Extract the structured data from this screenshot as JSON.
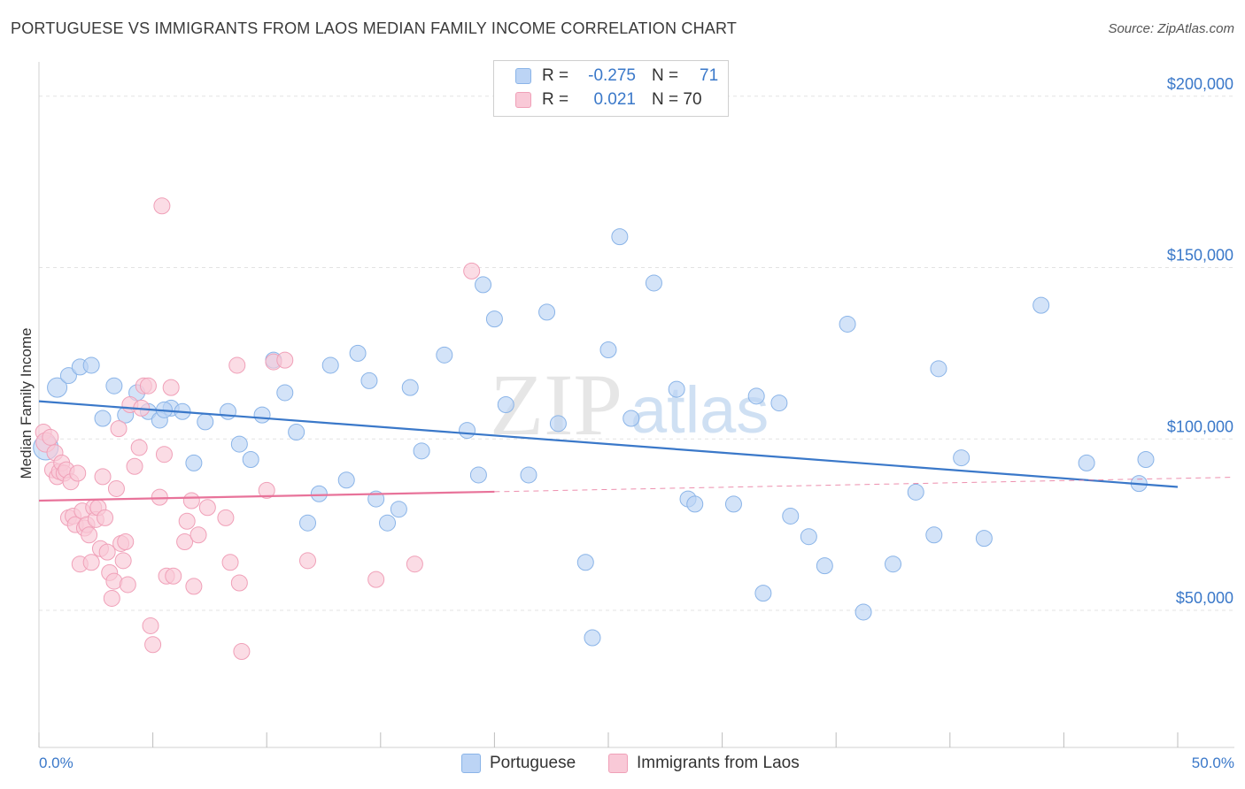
{
  "title": "PORTUGUESE VS IMMIGRANTS FROM LAOS MEDIAN FAMILY INCOME CORRELATION CHART",
  "source": "Source: ZipAtlas.com",
  "watermark": {
    "zip": "ZIP",
    "atlas": "atlas"
  },
  "legend": {
    "rows": [
      {
        "r_label": "R =",
        "r_value": "-0.275",
        "n_label": "N =",
        "n_value": "71",
        "color": "#8ab4e8",
        "fill": "#bcd4f5"
      },
      {
        "r_label": "R =",
        "r_value": "0.021",
        "n_label": "N = 70",
        "n_value": "",
        "color": "#f0a0b8",
        "fill": "#f9c9d7"
      }
    ]
  },
  "bottom_legend": [
    {
      "label": "Portuguese",
      "color": "#8ab4e8",
      "fill": "#bcd4f5"
    },
    {
      "label": "Immigrants from Laos",
      "color": "#f0a0b8",
      "fill": "#f9c9d7"
    }
  ],
  "chart_data": {
    "type": "scatter",
    "ylabel": "Median Family Income",
    "xlabel": "",
    "xlim": [
      0,
      50
    ],
    "ylim": [
      10000,
      210000
    ],
    "x_tick_labels": {
      "min": "0.0%",
      "max": "50.0%"
    },
    "y_ticks": [
      {
        "value": 50000,
        "label": "$50,000"
      },
      {
        "value": 100000,
        "label": "$100,000"
      },
      {
        "value": 150000,
        "label": "$150,000"
      },
      {
        "value": 200000,
        "label": "$200,000"
      }
    ],
    "grid": true,
    "legend_position": "top-center",
    "series": [
      {
        "name": "Portuguese",
        "color": "#3a78c9",
        "point_fill": "#bcd4f5",
        "point_stroke": "#8ab4e8",
        "trend": {
          "x0": 0,
          "y0": 111000,
          "x1": 50,
          "y1": 86000,
          "solid_to": 50
        },
        "points": [
          [
            0.3,
            97500,
            14
          ],
          [
            0.8,
            115000,
            11
          ],
          [
            1.3,
            118500,
            9
          ],
          [
            1.8,
            121000,
            9
          ],
          [
            2.3,
            121500,
            9
          ],
          [
            2.8,
            106000,
            9
          ],
          [
            3.3,
            115500,
            9
          ],
          [
            3.8,
            107000,
            9
          ],
          [
            4.3,
            113500,
            9
          ],
          [
            4.8,
            108000,
            9
          ],
          [
            5.3,
            105500,
            9
          ],
          [
            5.8,
            109000,
            9
          ],
          [
            6.3,
            108000,
            9
          ],
          [
            6.8,
            93000,
            9
          ],
          [
            7.3,
            105000,
            9
          ],
          [
            8.3,
            108000,
            9
          ],
          [
            8.8,
            98500,
            9
          ],
          [
            9.3,
            94000,
            9
          ],
          [
            9.8,
            107000,
            9
          ],
          [
            10.3,
            123000,
            9
          ],
          [
            10.8,
            113500,
            9
          ],
          [
            11.3,
            102000,
            9
          ],
          [
            11.8,
            75500,
            9
          ],
          [
            12.3,
            84000,
            9
          ],
          [
            12.8,
            121500,
            9
          ],
          [
            13.5,
            88000,
            9
          ],
          [
            14.0,
            125000,
            9
          ],
          [
            14.5,
            117000,
            9
          ],
          [
            14.8,
            82500,
            9
          ],
          [
            15.3,
            75500,
            9
          ],
          [
            15.8,
            79500,
            9
          ],
          [
            16.3,
            115000,
            9
          ],
          [
            16.8,
            96500,
            9
          ],
          [
            17.8,
            124500,
            9
          ],
          [
            18.8,
            102500,
            9
          ],
          [
            19.3,
            89500,
            9
          ],
          [
            19.5,
            145000,
            9
          ],
          [
            20.0,
            135000,
            9
          ],
          [
            20.5,
            110000,
            9
          ],
          [
            21.5,
            89500,
            9
          ],
          [
            22.3,
            137000,
            9
          ],
          [
            22.8,
            104500,
            9
          ],
          [
            24.0,
            64000,
            9
          ],
          [
            24.3,
            42000,
            9
          ],
          [
            25.0,
            126000,
            9
          ],
          [
            25.5,
            159000,
            9
          ],
          [
            26.0,
            106000,
            9
          ],
          [
            27.0,
            145500,
            9
          ],
          [
            28.0,
            114500,
            9
          ],
          [
            28.5,
            82500,
            9
          ],
          [
            28.8,
            81000,
            9
          ],
          [
            30.5,
            81000,
            9
          ],
          [
            31.5,
            112500,
            9
          ],
          [
            31.8,
            55000,
            9
          ],
          [
            32.5,
            110500,
            9
          ],
          [
            33.0,
            77500,
            9
          ],
          [
            33.8,
            71500,
            9
          ],
          [
            34.5,
            63000,
            9
          ],
          [
            35.5,
            133500,
            9
          ],
          [
            36.2,
            49500,
            9
          ],
          [
            37.5,
            63500,
            9
          ],
          [
            38.5,
            84500,
            9
          ],
          [
            39.3,
            72000,
            9
          ],
          [
            39.5,
            120500,
            9
          ],
          [
            40.5,
            94500,
            9
          ],
          [
            41.5,
            71000,
            9
          ],
          [
            44.0,
            139000,
            9
          ],
          [
            46.0,
            93000,
            9
          ],
          [
            48.3,
            87000,
            9
          ],
          [
            48.6,
            94000,
            9
          ],
          [
            5.5,
            108500,
            9
          ]
        ]
      },
      {
        "name": "Immigrants from Laos",
        "color": "#e8739a",
        "point_fill": "#f9c9d7",
        "point_stroke": "#f0a0b8",
        "trend": {
          "x0": 0,
          "y0": 82000,
          "x1": 50,
          "y1": 88500,
          "solid_to": 20
        },
        "points": [
          [
            0.2,
            102000,
            9
          ],
          [
            0.3,
            99000,
            11
          ],
          [
            0.5,
            100500,
            9
          ],
          [
            0.6,
            91000,
            9
          ],
          [
            0.7,
            96000,
            9
          ],
          [
            0.8,
            89000,
            9
          ],
          [
            0.9,
            90500,
            9
          ],
          [
            1.0,
            93000,
            9
          ],
          [
            1.1,
            90000,
            9
          ],
          [
            1.2,
            91000,
            9
          ],
          [
            1.3,
            77000,
            9
          ],
          [
            1.4,
            87500,
            9
          ],
          [
            1.5,
            77500,
            9
          ],
          [
            1.6,
            75000,
            9
          ],
          [
            1.7,
            90000,
            9
          ],
          [
            1.8,
            63500,
            9
          ],
          [
            1.9,
            79000,
            9
          ],
          [
            2.0,
            74000,
            9
          ],
          [
            2.1,
            75000,
            9
          ],
          [
            2.2,
            72000,
            9
          ],
          [
            2.3,
            64000,
            9
          ],
          [
            2.4,
            80000,
            9
          ],
          [
            2.5,
            76500,
            9
          ],
          [
            2.6,
            80000,
            9
          ],
          [
            2.7,
            68000,
            9
          ],
          [
            2.8,
            89000,
            9
          ],
          [
            2.9,
            77000,
            9
          ],
          [
            3.0,
            67000,
            9
          ],
          [
            3.1,
            61000,
            9
          ],
          [
            3.2,
            53500,
            9
          ],
          [
            3.3,
            58500,
            9
          ],
          [
            3.4,
            85500,
            9
          ],
          [
            3.5,
            103000,
            9
          ],
          [
            3.6,
            69500,
            9
          ],
          [
            3.7,
            64500,
            9
          ],
          [
            3.8,
            70000,
            9
          ],
          [
            3.9,
            57500,
            9
          ],
          [
            4.0,
            110000,
            9
          ],
          [
            4.2,
            92000,
            9
          ],
          [
            4.4,
            97500,
            9
          ],
          [
            4.5,
            109000,
            9
          ],
          [
            4.6,
            115500,
            9
          ],
          [
            4.8,
            115500,
            9
          ],
          [
            4.9,
            45500,
            9
          ],
          [
            5.0,
            40000,
            9
          ],
          [
            5.3,
            83000,
            9
          ],
          [
            5.4,
            168000,
            9
          ],
          [
            5.5,
            95500,
            9
          ],
          [
            5.6,
            60000,
            9
          ],
          [
            5.8,
            115000,
            9
          ],
          [
            5.9,
            60000,
            9
          ],
          [
            6.4,
            70000,
            9
          ],
          [
            6.5,
            76000,
            9
          ],
          [
            6.7,
            82000,
            9
          ],
          [
            6.8,
            57000,
            9
          ],
          [
            7.0,
            72000,
            9
          ],
          [
            7.4,
            80000,
            9
          ],
          [
            8.2,
            77000,
            9
          ],
          [
            8.4,
            64000,
            9
          ],
          [
            8.7,
            121500,
            9
          ],
          [
            8.8,
            58000,
            9
          ],
          [
            8.9,
            38000,
            9
          ],
          [
            10.0,
            85000,
            9
          ],
          [
            10.3,
            122500,
            9
          ],
          [
            10.8,
            123000,
            9
          ],
          [
            11.8,
            64500,
            9
          ],
          [
            14.8,
            59000,
            9
          ],
          [
            16.5,
            63500,
            9
          ],
          [
            19.0,
            149000,
            9
          ],
          [
            11.5,
            118000,
            0
          ]
        ]
      }
    ]
  }
}
